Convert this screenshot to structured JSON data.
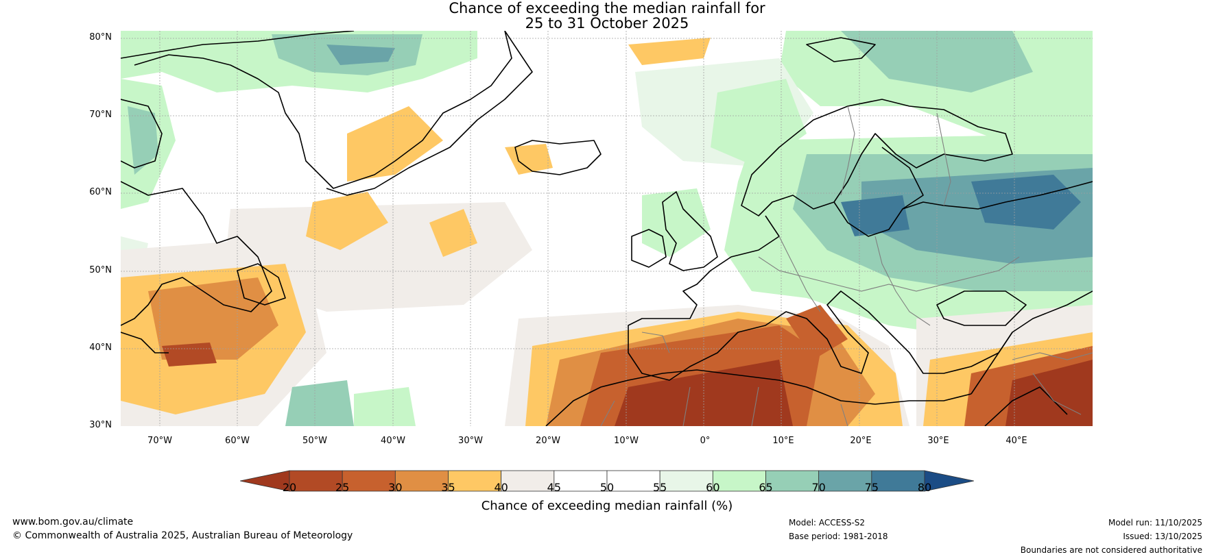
{
  "title": {
    "line1": "Chance of exceeding the median rainfall for",
    "line2": "25 to 31 October 2025"
  },
  "map": {
    "lat_labels": [
      "80°N",
      "70°N",
      "60°N",
      "50°N",
      "40°N",
      "30°N"
    ],
    "lon_labels": [
      "70°W",
      "60°W",
      "50°W",
      "40°W",
      "30°W",
      "20°W",
      "10°W",
      "0°",
      "10°E",
      "20°E",
      "30°E",
      "40°E"
    ],
    "extent": {
      "lon_min": -75,
      "lon_max": 50,
      "lat_min": 30,
      "lat_max": 81
    },
    "colors": {
      "coast": "#000000",
      "border": "#808080",
      "grid": "#a0a0a0"
    }
  },
  "colorbar": {
    "ticks": [
      "20",
      "25",
      "30",
      "35",
      "40",
      "45",
      "50",
      "55",
      "60",
      "65",
      "70",
      "75",
      "80"
    ],
    "colors": [
      "#a0391e",
      "#b24a25",
      "#c7612e",
      "#e08f44",
      "#fec864",
      "#f1ede9",
      "#ffffff",
      "#ffffff",
      "#e8f6e8",
      "#c7f6c8",
      "#96cfb6",
      "#6aa4a8",
      "#407a98",
      "#1b4c85"
    ],
    "label": "Chance of exceeding median rainfall (%)"
  },
  "footer": {
    "website": "www.bom.gov.au/climate",
    "copyright": "© Commonwealth of Australia 2025, Australian Bureau of Meteorology",
    "model": "Model: ACCESS-S2",
    "base_period": "Base period: 1981-2018",
    "model_run": "Model run: 11/10/2025",
    "issued": "Issued: 13/10/2025",
    "disclaimer": "Boundaries are not considered authoritative"
  }
}
